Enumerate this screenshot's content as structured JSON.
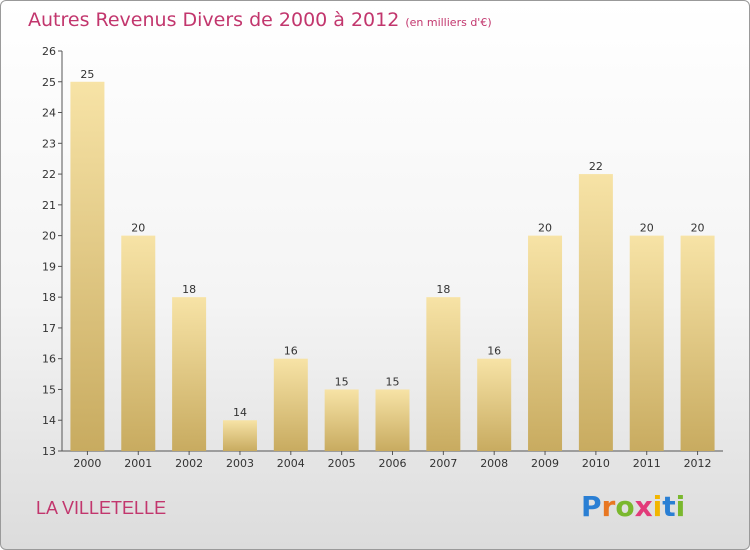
{
  "title": "Autres Revenus Divers de 2000 à 2012",
  "subtitle": "(en milliers d'€)",
  "commune": "LA VILLETELLE",
  "logo": {
    "letters": [
      "P",
      "r",
      "o",
      "x",
      "i",
      "t",
      "i"
    ],
    "colors": [
      "#2a7fd4",
      "#e87722",
      "#7ab82e",
      "#e23b7a",
      "#f2b600",
      "#2a7fd4",
      "#7ab82e"
    ]
  },
  "colors": {
    "bar_top": "#f7e3a6",
    "bar_bottom": "#c8ab60",
    "accent": "#c2366d"
  },
  "chart_data": {
    "type": "bar",
    "categories": [
      "2000",
      "2001",
      "2002",
      "2003",
      "2004",
      "2005",
      "2006",
      "2007",
      "2008",
      "2009",
      "2010",
      "2011",
      "2012"
    ],
    "values": [
      25,
      20,
      18,
      14,
      16,
      15,
      15,
      18,
      16,
      20,
      22,
      20,
      20
    ],
    "value_labels": [
      "25",
      "20",
      "18",
      "14",
      "16",
      "15",
      "15",
      "18",
      "16",
      "20",
      "22",
      "20",
      "20"
    ],
    "title": "Autres Revenus Divers de 2000 à 2012",
    "xlabel": "",
    "ylabel": "",
    "ylim": [
      13,
      26
    ],
    "yticks": [
      "13",
      "14",
      "15",
      "16",
      "17",
      "18",
      "19",
      "20",
      "21",
      "22",
      "23",
      "24",
      "25",
      "26"
    ],
    "grid": false
  }
}
